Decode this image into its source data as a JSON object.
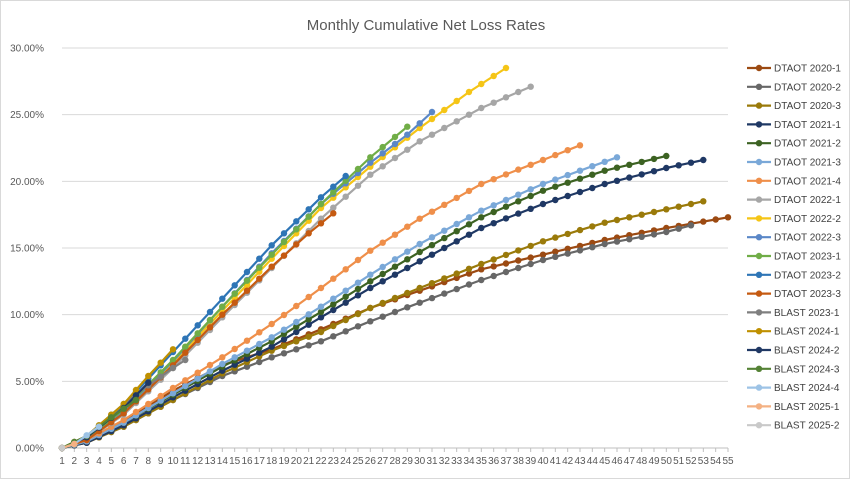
{
  "chart_data": {
    "type": "line",
    "title": "Monthly Cumulative Net Loss Rates",
    "xlabel": "",
    "ylabel": "",
    "x_ticks": [
      1,
      2,
      3,
      4,
      5,
      6,
      7,
      8,
      9,
      10,
      11,
      12,
      13,
      14,
      15,
      16,
      17,
      18,
      19,
      20,
      21,
      22,
      23,
      24,
      25,
      26,
      27,
      28,
      29,
      30,
      31,
      32,
      33,
      34,
      35,
      36,
      37,
      38,
      39,
      40,
      41,
      42,
      43,
      44,
      45,
      46,
      47,
      48,
      49,
      50,
      51,
      52,
      53,
      54,
      55
    ],
    "xlim": [
      1,
      55
    ],
    "y_ticks": [
      0,
      5,
      10,
      15,
      20,
      25,
      30
    ],
    "y_tick_labels": [
      "0.00%",
      "5.00%",
      "10.00%",
      "15.00%",
      "20.00%",
      "25.00%",
      "30.00%"
    ],
    "ylim": [
      0,
      30
    ],
    "y_unit": "%",
    "grid": "horizontal",
    "legend_position": "right",
    "series": [
      {
        "name": "DTAOT 2020-1",
        "color": "#9c4a12",
        "knots": [
          [
            1,
            0
          ],
          [
            3,
            0.6
          ],
          [
            6,
            2
          ],
          [
            10,
            4.3
          ],
          [
            14,
            6.2
          ],
          [
            18,
            7.4
          ],
          [
            22,
            8.9
          ],
          [
            26,
            10.5
          ],
          [
            30,
            11.8
          ],
          [
            35,
            13.4
          ],
          [
            40,
            14.5
          ],
          [
            45,
            15.6
          ],
          [
            50,
            16.5
          ],
          [
            55,
            17.3
          ]
        ]
      },
      {
        "name": "DTAOT 2020-2",
        "color": "#676767",
        "knots": [
          [
            1,
            0
          ],
          [
            3,
            0.4
          ],
          [
            6,
            1.6
          ],
          [
            10,
            3.6
          ],
          [
            14,
            5.4
          ],
          [
            18,
            6.8
          ],
          [
            22,
            8.0
          ],
          [
            26,
            9.5
          ],
          [
            30,
            10.9
          ],
          [
            35,
            12.6
          ],
          [
            40,
            14.1
          ],
          [
            45,
            15.3
          ],
          [
            50,
            16.2
          ],
          [
            52,
            16.7
          ]
        ]
      },
      {
        "name": "DTAOT 2020-3",
        "color": "#9a7a0a",
        "knots": [
          [
            1,
            0
          ],
          [
            3,
            0.4
          ],
          [
            6,
            1.6
          ],
          [
            10,
            3.6
          ],
          [
            14,
            5.6
          ],
          [
            18,
            7.3
          ],
          [
            22,
            8.7
          ],
          [
            26,
            10.5
          ],
          [
            30,
            12.0
          ],
          [
            35,
            13.8
          ],
          [
            40,
            15.5
          ],
          [
            45,
            16.9
          ],
          [
            50,
            17.9
          ],
          [
            53,
            18.5
          ]
        ]
      },
      {
        "name": "DTAOT 2021-1",
        "color": "#1f3864",
        "knots": [
          [
            1,
            0
          ],
          [
            3,
            0.4
          ],
          [
            6,
            1.7
          ],
          [
            10,
            3.8
          ],
          [
            14,
            5.8
          ],
          [
            18,
            7.6
          ],
          [
            22,
            9.8
          ],
          [
            26,
            12.0
          ],
          [
            30,
            14.0
          ],
          [
            35,
            16.5
          ],
          [
            40,
            18.3
          ],
          [
            45,
            19.8
          ],
          [
            50,
            21.0
          ],
          [
            53,
            21.6
          ]
        ]
      },
      {
        "name": "DTAOT 2021-2",
        "color": "#3c6222",
        "knots": [
          [
            1,
            0
          ],
          [
            3,
            0.5
          ],
          [
            6,
            1.9
          ],
          [
            10,
            4.0
          ],
          [
            14,
            6.1
          ],
          [
            18,
            8.0
          ],
          [
            22,
            10.2
          ],
          [
            26,
            12.5
          ],
          [
            30,
            14.7
          ],
          [
            35,
            17.3
          ],
          [
            40,
            19.3
          ],
          [
            45,
            20.8
          ],
          [
            50,
            21.9
          ]
        ]
      },
      {
        "name": "DTAOT 2021-3",
        "color": "#7aa8d8",
        "knots": [
          [
            1,
            0
          ],
          [
            3,
            0.5
          ],
          [
            6,
            1.9
          ],
          [
            10,
            4.1
          ],
          [
            14,
            6.3
          ],
          [
            18,
            8.3
          ],
          [
            22,
            10.6
          ],
          [
            26,
            13.0
          ],
          [
            30,
            15.3
          ],
          [
            35,
            17.8
          ],
          [
            40,
            19.8
          ],
          [
            46,
            21.8
          ]
        ]
      },
      {
        "name": "DTAOT 2021-4",
        "color": "#ef8f4a",
        "knots": [
          [
            1,
            0
          ],
          [
            3,
            0.6
          ],
          [
            6,
            2.1
          ],
          [
            10,
            4.5
          ],
          [
            14,
            6.8
          ],
          [
            18,
            9.3
          ],
          [
            22,
            12.0
          ],
          [
            26,
            14.8
          ],
          [
            30,
            17.2
          ],
          [
            35,
            19.8
          ],
          [
            40,
            21.6
          ],
          [
            43,
            22.7
          ]
        ]
      },
      {
        "name": "DTAOT 2022-1",
        "color": "#a6a6a6",
        "knots": [
          [
            1,
            0
          ],
          [
            3,
            0.6
          ],
          [
            6,
            2.5
          ],
          [
            10,
            6.0
          ],
          [
            14,
            9.8
          ],
          [
            18,
            13.5
          ],
          [
            22,
            17.2
          ],
          [
            26,
            20.5
          ],
          [
            30,
            23.0
          ],
          [
            35,
            25.5
          ],
          [
            39,
            27.1
          ]
        ]
      },
      {
        "name": "DTAOT 2022-2",
        "color": "#f5c516",
        "knots": [
          [
            1,
            0
          ],
          [
            3,
            0.7
          ],
          [
            6,
            2.8
          ],
          [
            10,
            6.4
          ],
          [
            14,
            10.3
          ],
          [
            18,
            14.2
          ],
          [
            22,
            18.0
          ],
          [
            26,
            21.1
          ],
          [
            30,
            24.0
          ],
          [
            34,
            26.7
          ],
          [
            37,
            28.5
          ]
        ]
      },
      {
        "name": "DTAOT 2022-3",
        "color": "#5a87c7",
        "knots": [
          [
            1,
            0
          ],
          [
            3,
            0.7
          ],
          [
            6,
            2.8
          ],
          [
            10,
            6.5
          ],
          [
            14,
            10.6
          ],
          [
            18,
            14.6
          ],
          [
            22,
            18.3
          ],
          [
            26,
            21.4
          ],
          [
            29,
            23.5
          ],
          [
            31,
            25.2
          ]
        ]
      },
      {
        "name": "DTAOT 2023-1",
        "color": "#70ad47",
        "knots": [
          [
            1,
            0
          ],
          [
            3,
            0.7
          ],
          [
            6,
            2.9
          ],
          [
            10,
            6.6
          ],
          [
            14,
            10.6
          ],
          [
            18,
            14.5
          ],
          [
            22,
            18.3
          ],
          [
            26,
            21.8
          ],
          [
            29,
            24.1
          ]
        ]
      },
      {
        "name": "DTAOT 2023-2",
        "color": "#2e75b6",
        "knots": [
          [
            1,
            0
          ],
          [
            3,
            0.8
          ],
          [
            6,
            3.2
          ],
          [
            10,
            7.2
          ],
          [
            14,
            11.2
          ],
          [
            18,
            15.2
          ],
          [
            22,
            18.8
          ],
          [
            24,
            20.4
          ]
        ]
      },
      {
        "name": "DTAOT 2023-3",
        "color": "#c55a11",
        "knots": [
          [
            1,
            0
          ],
          [
            3,
            0.6
          ],
          [
            6,
            2.6
          ],
          [
            10,
            6.2
          ],
          [
            14,
            10.0
          ],
          [
            18,
            13.6
          ],
          [
            21,
            16.1
          ],
          [
            23,
            17.6
          ]
        ]
      },
      {
        "name": "BLAST 2023-1",
        "color": "#7f7f7f",
        "knots": [
          [
            1,
            0
          ],
          [
            3,
            0.9
          ],
          [
            6,
            3.3
          ],
          [
            8,
            4.7
          ],
          [
            10,
            6.0
          ],
          [
            11,
            6.6
          ]
        ]
      },
      {
        "name": "BLAST 2024-1",
        "color": "#bf9000",
        "knots": [
          [
            1,
            0
          ],
          [
            3,
            0.9
          ],
          [
            6,
            3.3
          ],
          [
            8,
            5.4
          ],
          [
            10,
            7.4
          ]
        ]
      },
      {
        "name": "BLAST 2024-2",
        "color": "#203864",
        "knots": [
          [
            1,
            0
          ],
          [
            3,
            0.8
          ],
          [
            6,
            3.0
          ],
          [
            8,
            4.9
          ]
        ]
      },
      {
        "name": "BLAST 2024-3",
        "color": "#548235",
        "knots": [
          [
            1,
            0
          ],
          [
            3,
            0.9
          ],
          [
            5,
            2.3
          ],
          [
            7,
            3.6
          ]
        ]
      },
      {
        "name": "BLAST 2024-4",
        "color": "#9dc3e6",
        "knots": [
          [
            1,
            0
          ],
          [
            2,
            0.3
          ],
          [
            4,
            1.6
          ]
        ]
      },
      {
        "name": "BLAST 2025-1",
        "color": "#f4b183",
        "knots": [
          [
            1,
            0
          ],
          [
            2,
            0.3
          ]
        ]
      },
      {
        "name": "BLAST 2025-2",
        "color": "#c9c9c9",
        "knots": [
          [
            1,
            0
          ]
        ]
      }
    ]
  }
}
